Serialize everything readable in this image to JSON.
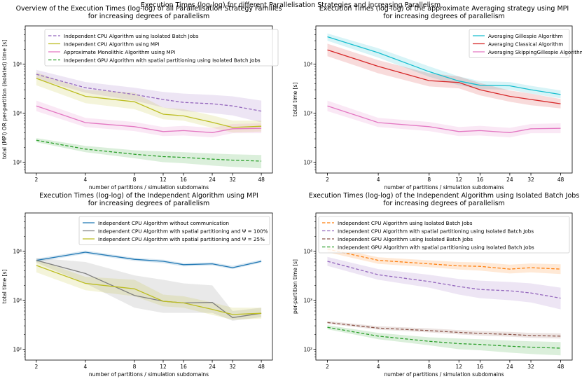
{
  "suptitle": "Execution Times (log-log) for different Parallelisation Strategies and increasing Parallelism",
  "chart_data": [
    {
      "type": "line",
      "title": "Overview of the Execution Times (log-log) of all Parallelisation Strategy Families\nfor increasing degrees of parallelism",
      "xlabel": "number of partitions / simulation subdomains",
      "ylabel": "total (MPI) OR per-partition (isolated) time [s]",
      "xscale": "log",
      "yscale": "log",
      "x": [
        2,
        4,
        8,
        12,
        16,
        24,
        32,
        48
      ],
      "xticks": [
        "2",
        "4",
        "8",
        "12",
        "16",
        "24",
        "32",
        "48"
      ],
      "ylim": [
        60,
        60000
      ],
      "yticks": [
        "10²",
        "10³",
        "10⁴"
      ],
      "legend_position": "upper-left",
      "series": [
        {
          "name": "Independent CPU Algorithm using Isolated Batch Jobs",
          "color": "#9467bd",
          "dash": "dashed",
          "values": [
            6200,
            3300,
            2400,
            1900,
            1650,
            1550,
            1400,
            1100
          ],
          "band": [
            [
              5000,
              7600
            ],
            [
              2600,
              4300
            ],
            [
              1800,
              3300
            ],
            [
              1300,
              2700
            ],
            [
              1100,
              2500
            ],
            [
              1000,
              2350
            ],
            [
              900,
              2200
            ],
            [
              650,
              1800
            ]
          ]
        },
        {
          "name": "Independent CPU Algorithm using MPI",
          "color": "#bcbd22",
          "dash": "solid",
          "values": [
            5100,
            2200,
            1700,
            950,
            880,
            650,
            510,
            540
          ],
          "band": [
            [
              3700,
              6800
            ],
            [
              1600,
              3000
            ],
            [
              1200,
              2600
            ],
            [
              750,
              1300
            ],
            [
              700,
              1200
            ],
            [
              500,
              900
            ],
            [
              400,
              700
            ],
            [
              420,
              700
            ]
          ]
        },
        {
          "name": "Approximate Monolithic Algorithm using MPI",
          "color": "#e377c2",
          "dash": "solid",
          "values": [
            1400,
            640,
            530,
            420,
            440,
            400,
            480,
            490
          ],
          "band": [
            [
              1100,
              1800
            ],
            [
              520,
              800
            ],
            [
              430,
              660
            ],
            [
              340,
              520
            ],
            [
              350,
              550
            ],
            [
              320,
              500
            ],
            [
              390,
              600
            ],
            [
              390,
              620
            ]
          ]
        },
        {
          "name": "Independent GPU Algorithm with spatial partitioning using Isolated Batch Jobs",
          "color": "#2ca02c",
          "dash": "dashed",
          "values": [
            280,
            185,
            145,
            130,
            125,
            115,
            110,
            105
          ],
          "band": [
            [
              255,
              310
            ],
            [
              160,
              215
            ],
            [
              120,
              175
            ],
            [
              100,
              165
            ],
            [
              95,
              160
            ],
            [
              85,
              150
            ],
            [
              80,
              145
            ],
            [
              75,
              140
            ]
          ]
        }
      ]
    },
    {
      "type": "line",
      "title": "Execution Times (log-log) of the approximate Averaging strategy using MPI\nfor increasing degrees of parallelism",
      "xlabel": "number of partitions / simulation subdomains",
      "ylabel": "total time [s]",
      "xscale": "log",
      "yscale": "log",
      "x": [
        2,
        4,
        8,
        12,
        16,
        24,
        32,
        48
      ],
      "xticks": [
        "2",
        "4",
        "8",
        "12",
        "16",
        "24",
        "32",
        "48"
      ],
      "ylim": [
        60,
        60000
      ],
      "yticks": [
        "10²",
        "10³",
        "10⁴"
      ],
      "legend_position": "upper-right",
      "series": [
        {
          "name": "Averaging Gillespie Algorithm",
          "color": "#17becf",
          "dash": "solid",
          "values": [
            36000,
            17000,
            7000,
            4500,
            3700,
            3600,
            3000,
            2400
          ],
          "band": [
            [
              30000,
              42000
            ],
            [
              13500,
              21000
            ],
            [
              5500,
              9000
            ],
            [
              3700,
              5600
            ],
            [
              3100,
              4500
            ],
            [
              3000,
              4300
            ],
            [
              2500,
              3600
            ],
            [
              2000,
              2900
            ]
          ]
        },
        {
          "name": "Averaging Classical Algorithm",
          "color": "#d62728",
          "dash": "solid",
          "values": [
            19500,
            9000,
            4600,
            4200,
            3000,
            2200,
            1900,
            1550
          ],
          "band": [
            [
              14500,
              26000
            ],
            [
              6500,
              12000
            ],
            [
              3500,
              6500
            ],
            [
              3200,
              5600
            ],
            [
              2300,
              4100
            ],
            [
              1700,
              2900
            ],
            [
              1450,
              2500
            ],
            [
              1250,
              1950
            ]
          ]
        },
        {
          "name": "Averaging SkippingGillespie Algorithm",
          "color": "#e377c2",
          "dash": "solid",
          "values": [
            1400,
            640,
            530,
            420,
            440,
            400,
            480,
            490
          ],
          "band": [
            [
              1100,
              1800
            ],
            [
              520,
              800
            ],
            [
              430,
              660
            ],
            [
              340,
              520
            ],
            [
              350,
              550
            ],
            [
              320,
              500
            ],
            [
              390,
              600
            ],
            [
              390,
              620
            ]
          ]
        }
      ]
    },
    {
      "type": "line",
      "title": "Execution Times (log-log) of the Independent Algorithm using MPI\nfor increasing degrees of parallelism",
      "xlabel": "number of partitions / simulation subdomains",
      "ylabel": "total time [s]",
      "xscale": "log",
      "yscale": "log",
      "x": [
        2,
        4,
        8,
        12,
        16,
        24,
        32,
        48
      ],
      "xticks": [
        "2",
        "4",
        "8",
        "12",
        "16",
        "24",
        "32",
        "48"
      ],
      "ylim": [
        60,
        60000
      ],
      "yticks": [
        "10²",
        "10³",
        "10⁴"
      ],
      "legend_position": "upper-right",
      "series": [
        {
          "name": "Independent CPU Algorithm without communication",
          "color": "#1f77b4",
          "dash": "solid",
          "values": [
            6500,
            9500,
            6800,
            6200,
            5300,
            5500,
            4600,
            6200
          ],
          "band": [
            [
              6000,
              7000
            ],
            [
              8800,
              10300
            ],
            [
              6300,
              7300
            ],
            [
              5700,
              6700
            ],
            [
              4900,
              5700
            ],
            [
              5100,
              5900
            ],
            [
              4300,
              5000
            ],
            [
              5800,
              6700
            ]
          ]
        },
        {
          "name": "Independent CPU Algorithm with spatial partitioning and Ψ = 100%",
          "color": "#7f7f7f",
          "dash": "solid",
          "values": [
            6500,
            3500,
            1250,
            950,
            880,
            900,
            440,
            540
          ],
          "band": [
            [
              5800,
              7300
            ],
            [
              2200,
              6000
            ],
            [
              700,
              3200
            ],
            [
              550,
              2600
            ],
            [
              550,
              2200
            ],
            [
              550,
              2000
            ],
            [
              380,
              600
            ],
            [
              450,
              700
            ]
          ]
        },
        {
          "name": "Independent CPU Algorithm with spatial partitioning and Ψ = 25%",
          "color": "#bcbd22",
          "dash": "solid",
          "values": [
            5100,
            2200,
            1700,
            950,
            880,
            650,
            510,
            540
          ],
          "band": [
            [
              3700,
              6800
            ],
            [
              1600,
              3000
            ],
            [
              1200,
              2600
            ],
            [
              750,
              1300
            ],
            [
              700,
              1200
            ],
            [
              500,
              900
            ],
            [
              400,
              700
            ],
            [
              420,
              700
            ]
          ]
        }
      ]
    },
    {
      "type": "line",
      "title": "Execution Times (log-log) of the Independent Algorithm using Isolated Batch Jobs\nfor increasing degrees of parallelism",
      "xlabel": "number of partitions / simulation subdomains",
      "ylabel": "per-partition time [s]",
      "xscale": "log",
      "yscale": "log",
      "x": [
        2,
        4,
        8,
        12,
        16,
        24,
        32,
        48
      ],
      "xticks": [
        "2",
        "4",
        "8",
        "12",
        "16",
        "24",
        "32",
        "48"
      ],
      "ylim": [
        60,
        60000
      ],
      "yticks": [
        "10²",
        "10³",
        "10⁴"
      ],
      "legend_position": "upper-right",
      "series": [
        {
          "name": "Independent CPU Algorithm using Isolated Batch Jobs",
          "color": "#ff7f0e",
          "dash": "dashed",
          "values": [
            11000,
            6500,
            5500,
            5000,
            4900,
            4300,
            4600,
            4300
          ],
          "band": [
            [
              9500,
              12500
            ],
            [
              5500,
              7500
            ],
            [
              4700,
              6500
            ],
            [
              4200,
              6000
            ],
            [
              4000,
              5900
            ],
            [
              3500,
              5300
            ],
            [
              3700,
              5600
            ],
            [
              3400,
              5400
            ]
          ]
        },
        {
          "name": "Independent CPU Algorithm with spatial partitioning using Isolated Batch Jobs",
          "color": "#9467bd",
          "dash": "dashed",
          "values": [
            6200,
            3300,
            2400,
            1900,
            1650,
            1550,
            1400,
            1100
          ],
          "band": [
            [
              5000,
              7600
            ],
            [
              2600,
              4300
            ],
            [
              1800,
              3300
            ],
            [
              1300,
              2700
            ],
            [
              1100,
              2500
            ],
            [
              1000,
              2350
            ],
            [
              900,
              2200
            ],
            [
              650,
              1800
            ]
          ]
        },
        {
          "name": "Independent GPU Algorithm using Isolated Batch Jobs",
          "color": "#8c564b",
          "dash": "dashed",
          "values": [
            350,
            270,
            240,
            220,
            210,
            200,
            190,
            185
          ],
          "band": [
            [
              330,
              375
            ],
            [
              250,
              295
            ],
            [
              220,
              265
            ],
            [
              200,
              245
            ],
            [
              190,
              235
            ],
            [
              180,
              225
            ],
            [
              170,
              215
            ],
            [
              165,
              210
            ]
          ]
        },
        {
          "name": "Independent GPU Algorithm with spatial partitioning using Isolated Batch Jobs",
          "color": "#2ca02c",
          "dash": "dashed",
          "values": [
            280,
            185,
            145,
            130,
            125,
            115,
            110,
            105
          ],
          "band": [
            [
              255,
              310
            ],
            [
              160,
              215
            ],
            [
              120,
              175
            ],
            [
              100,
              165
            ],
            [
              95,
              160
            ],
            [
              85,
              150
            ],
            [
              80,
              145
            ],
            [
              75,
              140
            ]
          ]
        }
      ]
    }
  ]
}
